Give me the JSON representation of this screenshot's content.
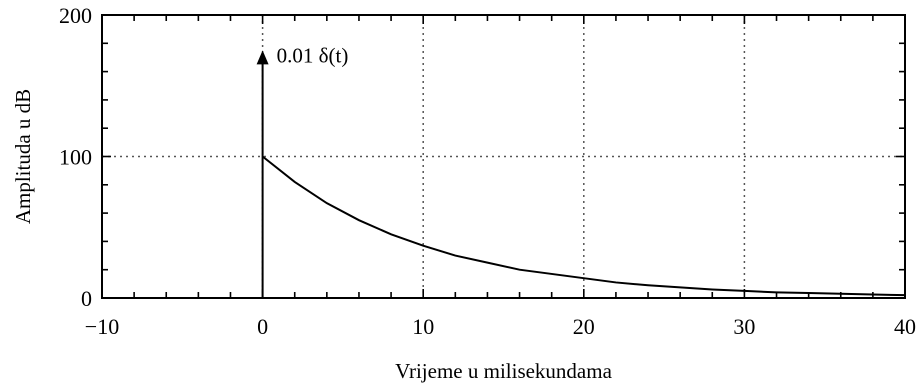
{
  "chart_data": {
    "type": "line",
    "title": "",
    "xlabel": "Vrijeme u milisekundama",
    "ylabel": "Amplituda u dB",
    "xlim": [
      -10,
      40
    ],
    "ylim": [
      0,
      200
    ],
    "x_ticks": [
      "−10",
      "0",
      "10",
      "20",
      "30",
      "40"
    ],
    "y_ticks": [
      "0",
      "100",
      "200"
    ],
    "grid": true,
    "series": [
      {
        "x": [
          0,
          2,
          4,
          6,
          8,
          10,
          12,
          14,
          16,
          18,
          20,
          22,
          24,
          26,
          28,
          30,
          32,
          34,
          36,
          38,
          40
        ],
        "values": [
          100,
          82,
          67,
          55,
          45,
          37,
          30,
          25,
          20,
          17,
          14,
          11,
          9,
          7.5,
          6,
          5,
          4,
          3.5,
          3,
          2.5,
          2
        ]
      }
    ],
    "impulse": {
      "x": 0,
      "y_top": 175,
      "label": "0.01 δ(t)"
    },
    "colors": {
      "line": "#000000",
      "grid": "#555555",
      "background": "#ffffff"
    }
  }
}
